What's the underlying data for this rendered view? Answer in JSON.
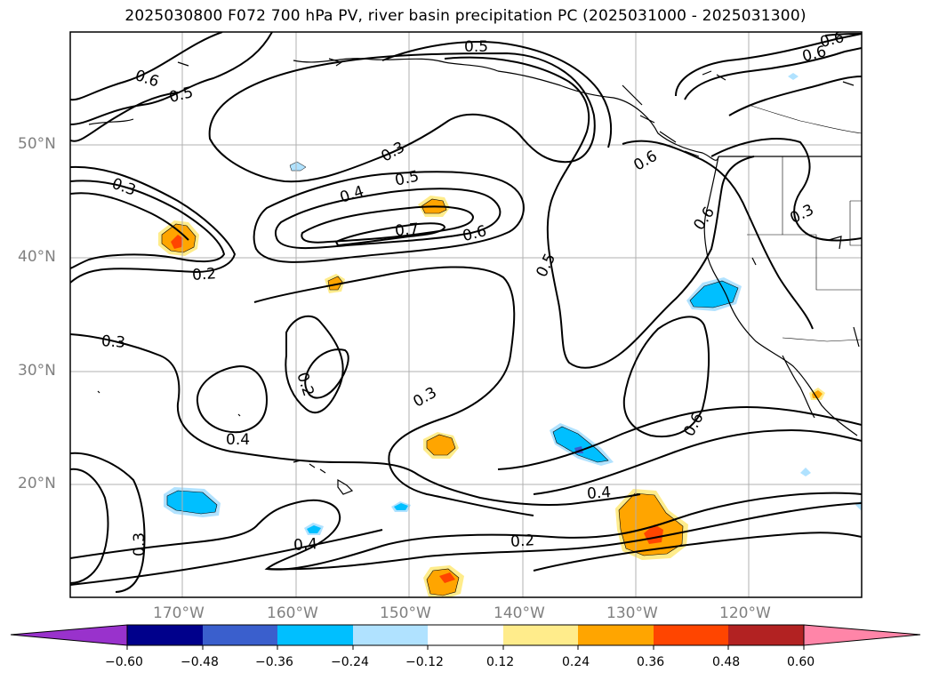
{
  "title": "2025030800 F072 700 hPa PV, river basin precipitation PC (2025031000 - 2025031300)",
  "lat_labels": [
    "50°N",
    "40°N",
    "30°N",
    "20°N"
  ],
  "lon_labels": [
    "170°W",
    "160°W",
    "150°W",
    "140°W",
    "130°W",
    "120°W"
  ],
  "contour_labels": [
    "0.6",
    "0.5",
    "0.3",
    "0.3",
    "0.4",
    "0.5",
    "0.7",
    "0.6",
    "0.2",
    "0.5",
    "0.6",
    "0.6",
    "0.3",
    "0.3",
    "0.2",
    "0.4",
    "0.3",
    "0.6",
    "0.4",
    "0.4",
    "0.3",
    "0.2",
    "0.5",
    "0.6",
    "0.6"
  ],
  "colorbar": {
    "tick_labels": [
      "−0.60",
      "−0.48",
      "−0.36",
      "−0.24",
      "−0.12",
      "0.12",
      "0.24",
      "0.36",
      "0.48",
      "0.60"
    ],
    "colors": [
      "#9932cc",
      "#00008b",
      "#3a5fcd",
      "#00bfff",
      "#b0e2ff",
      "#ffffff",
      "#ffec8b",
      "#ffa500",
      "#ff4500",
      "#b22222",
      "#ff85a8",
      "#ff85a8"
    ]
  },
  "palette": {
    "light_yellow": "#ffec8b",
    "orange": "#ffa500",
    "red_orange": "#ff4500",
    "light_blue": "#b0e2ff",
    "cyan": "#00bfff",
    "blue": "#3a5fcd"
  }
}
